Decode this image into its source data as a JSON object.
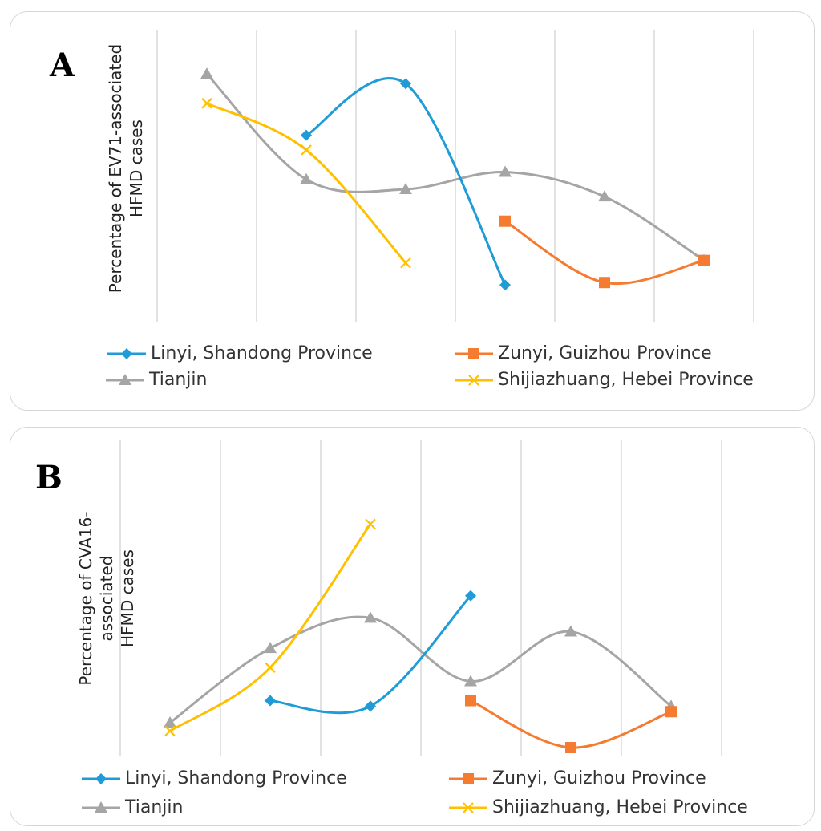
{
  "chart_data": [
    {
      "panel_label": "A",
      "type": "line",
      "ylabel_line1": "Percentage of EV71-associated",
      "ylabel_line2": "HFMD cases",
      "x_positions": [
        1,
        2,
        3,
        4,
        5,
        6
      ],
      "ylim": [
        0,
        100
      ],
      "grid": "vertical",
      "legend_placement": "bottom",
      "series": [
        {
          "name": "Linyi, Shandong Province",
          "color": "#1f9bd7",
          "marker": "diamond",
          "x": [
            2,
            3,
            4
          ],
          "values": [
            73,
            94,
            12
          ]
        },
        {
          "name": "Zunyi, Guizhou Province",
          "color": "#f47b30",
          "marker": "square",
          "x": [
            4,
            5,
            6
          ],
          "values": [
            38,
            13,
            22
          ]
        },
        {
          "name": "Tianjin",
          "color": "#a5a5a5",
          "marker": "triangle",
          "x": [
            1,
            2,
            3,
            4,
            5,
            6
          ],
          "values": [
            98,
            55,
            51,
            58,
            48,
            22
          ]
        },
        {
          "name": "Shijiazhuang, Hebei Province",
          "color": "#ffc000",
          "marker": "x",
          "x": [
            1,
            2,
            3
          ],
          "values": [
            86,
            67,
            21
          ]
        }
      ]
    },
    {
      "panel_label": "B",
      "type": "line",
      "ylabel_line1": "Percentage of CVA16-associated",
      "ylabel_line2": "HFMD cases",
      "x_positions": [
        1,
        2,
        3,
        4,
        5,
        6
      ],
      "ylim": [
        0,
        100
      ],
      "grid": "vertical",
      "legend_placement": "bottom",
      "series": [
        {
          "name": "Linyi, Shandong Province",
          "color": "#1f9bd7",
          "marker": "diamond",
          "x": [
            2,
            3,
            4
          ],
          "values": [
            17,
            15,
            55
          ]
        },
        {
          "name": "Zunyi, Guizhou Province",
          "color": "#f47b30",
          "marker": "square",
          "x": [
            4,
            5,
            6
          ],
          "values": [
            17,
            0,
            13
          ]
        },
        {
          "name": "Tianjin",
          "color": "#a5a5a5",
          "marker": "triangle",
          "x": [
            1,
            2,
            3,
            4,
            5,
            6
          ],
          "values": [
            9,
            36,
            47,
            24,
            42,
            15
          ]
        },
        {
          "name": "Shijiazhuang, Hebei Province",
          "color": "#ffc000",
          "marker": "x",
          "x": [
            1,
            2,
            3
          ],
          "values": [
            6,
            29,
            81
          ]
        }
      ]
    }
  ]
}
